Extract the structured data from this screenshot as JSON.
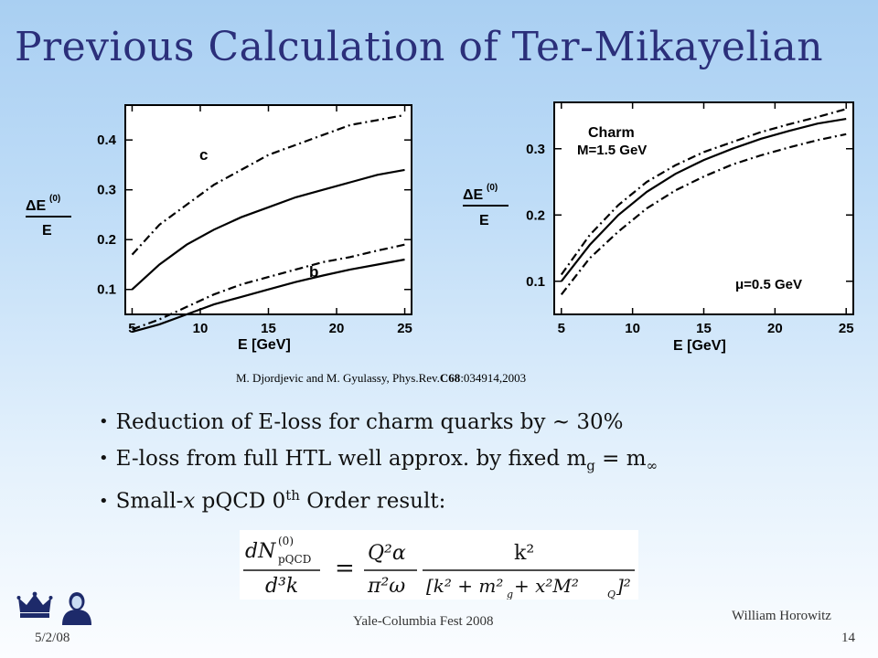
{
  "slide": {
    "title": "Previous Calculation of Ter-Mikayelian",
    "citation_prefix": "M. Djordjevic and M. Gyulassy, Phys.Rev.",
    "citation_volume": "C68",
    "citation_rest": ":034914,2003",
    "bullets": {
      "b1": "Reduction of E-loss for charm quarks by ~ 30%",
      "b2_text": "E-loss from full HTL well approx. by fixed m",
      "b2_sub1": "g",
      "b2_mid": " = m",
      "b2_sub2": "∞",
      "b3_a": "Small-",
      "b3_x": "x",
      "b3_b": " pQCD 0",
      "b3_sup": "th",
      "b3_c": " Order result:"
    },
    "formula": {
      "lhs_num": "dN",
      "lhs_num_sup": "(0)",
      "lhs_num_sub": "pQCD",
      "lhs_den": "d³k",
      "eq": "=",
      "mid_num": "Q²α",
      "mid_den": "π²ω",
      "rhs_num": "k²",
      "rhs_den": "[k² + m²",
      "rhs_den_sub1": "g",
      "rhs_den_mid": " + x²M²",
      "rhs_den_sub2": "Q",
      "rhs_den_end": "]²"
    },
    "footer": {
      "date": "5/2/08",
      "event": "Yale-Columbia Fest 2008",
      "author": "William Horowitz",
      "page": "14"
    }
  },
  "chart_data": [
    {
      "type": "line",
      "x_values": [
        5,
        7,
        9,
        11,
        13,
        15,
        17,
        19,
        21,
        23,
        25
      ],
      "xlabel": "E [GeV]",
      "ylabel_num": "ΔE",
      "ylabel_sup": "(0)",
      "ylabel_den": "E",
      "xlim": [
        4.5,
        25.5
      ],
      "ylim": [
        0.05,
        0.47
      ],
      "xticks": [
        5,
        10,
        15,
        20,
        25
      ],
      "yticks": [
        0.1,
        0.2,
        0.3,
        0.4
      ],
      "grid": false,
      "annotations": [
        "c",
        "b"
      ],
      "series": [
        {
          "style": "dashdot",
          "values": [
            0.17,
            0.23,
            0.27,
            0.31,
            0.34,
            0.37,
            0.39,
            0.41,
            0.43,
            0.44,
            0.45
          ]
        },
        {
          "style": "solid",
          "values": [
            0.1,
            0.15,
            0.19,
            0.22,
            0.245,
            0.265,
            0.285,
            0.3,
            0.315,
            0.33,
            0.34
          ]
        },
        {
          "style": "dashdot",
          "values": [
            0.02,
            0.04,
            0.065,
            0.09,
            0.11,
            0.125,
            0.14,
            0.155,
            0.165,
            0.178,
            0.19
          ]
        },
        {
          "style": "solid",
          "values": [
            0.015,
            0.03,
            0.05,
            0.07,
            0.085,
            0.1,
            0.115,
            0.128,
            0.14,
            0.15,
            0.16
          ]
        }
      ]
    },
    {
      "type": "line",
      "x_values": [
        5,
        7,
        9,
        11,
        13,
        15,
        17,
        19,
        21,
        23,
        25
      ],
      "xlabel": "E [GeV]",
      "ylabel_num": "ΔE",
      "ylabel_sup": "(0)",
      "ylabel_den": "E",
      "xlim": [
        4.5,
        25.5
      ],
      "ylim": [
        0.05,
        0.37
      ],
      "xticks": [
        5,
        10,
        15,
        20,
        25
      ],
      "yticks": [
        0.1,
        0.2,
        0.3
      ],
      "grid": false,
      "annotations": [
        "Charm",
        "M=1.5 GeV",
        "μ=0.5 GeV"
      ],
      "series": [
        {
          "style": "dashdot",
          "values": [
            0.11,
            0.17,
            0.215,
            0.25,
            0.275,
            0.295,
            0.31,
            0.325,
            0.337,
            0.348,
            0.36
          ]
        },
        {
          "style": "solid",
          "values": [
            0.1,
            0.155,
            0.2,
            0.235,
            0.262,
            0.283,
            0.3,
            0.315,
            0.327,
            0.338,
            0.345
          ]
        },
        {
          "style": "dashdot",
          "values": [
            0.08,
            0.135,
            0.175,
            0.21,
            0.237,
            0.258,
            0.276,
            0.29,
            0.302,
            0.313,
            0.322
          ]
        }
      ]
    }
  ]
}
